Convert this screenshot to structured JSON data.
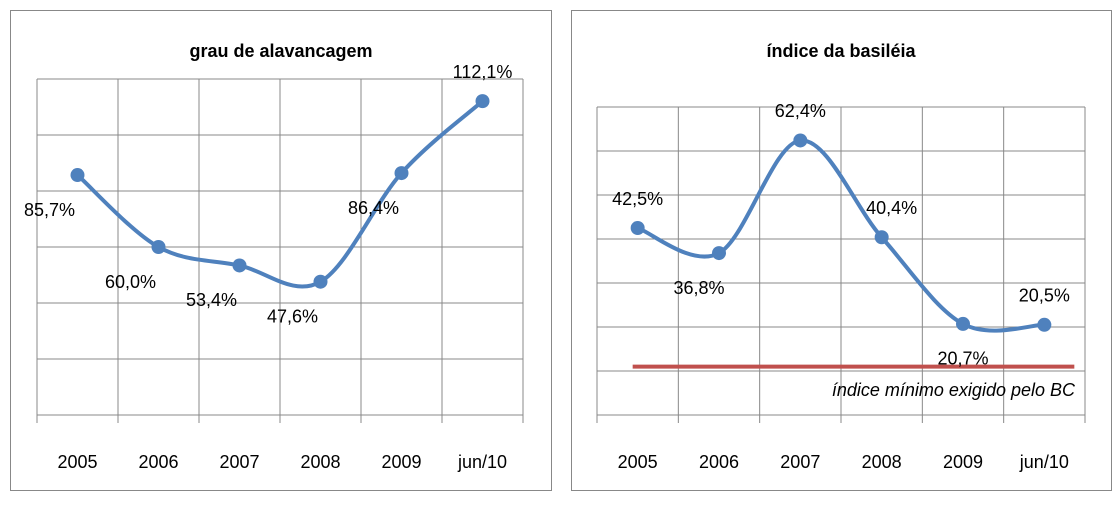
{
  "chart_data": [
    {
      "type": "line",
      "title": "grau de alavancagem",
      "categories": [
        "2005",
        "2006",
        "2007",
        "2008",
        "2009",
        "jun/10"
      ],
      "values": [
        85.7,
        60.0,
        53.4,
        47.6,
        86.4,
        112.1
      ],
      "value_labels": [
        "85,7%",
        "60,0%",
        "53,4%",
        "47,6%",
        "86,4%",
        "112,1%"
      ],
      "color": "#4f81bd",
      "ylim": [
        0,
        120
      ],
      "yticks": [
        0,
        20,
        40,
        60,
        80,
        100,
        120
      ],
      "grid": true,
      "ytick_labels": false
    },
    {
      "type": "line",
      "title": "índice da basiléia",
      "categories": [
        "2005",
        "2006",
        "2007",
        "2008",
        "2009",
        "jun/10"
      ],
      "values": [
        42.5,
        36.8,
        62.4,
        40.4,
        20.7,
        20.5
      ],
      "value_labels": [
        "42,5%",
        "36,8%",
        "62,4%",
        "40,4%",
        "20,7%",
        "20,5%"
      ],
      "color": "#4f81bd",
      "ylim": [
        0,
        70
      ],
      "yticks": [
        0,
        10,
        20,
        30,
        40,
        50,
        60,
        70
      ],
      "grid": true,
      "ytick_labels": false,
      "reference_line": {
        "value": 11,
        "label": "índice mínimo exigido pelo BC",
        "color": "#c0504d"
      }
    }
  ]
}
